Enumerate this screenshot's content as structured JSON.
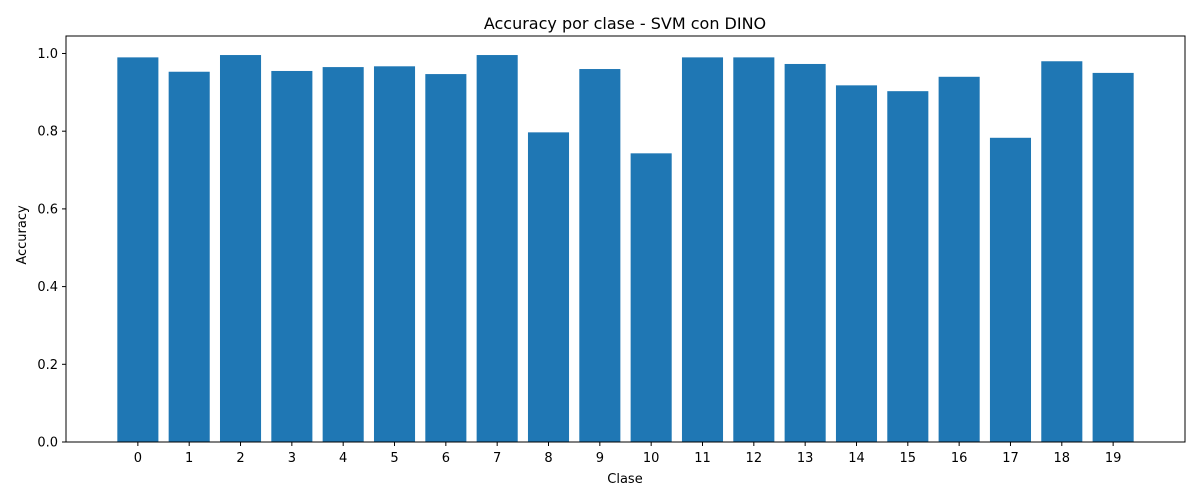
{
  "chart_data": {
    "type": "bar",
    "title": "Accuracy por clase - SVM con DINO",
    "xlabel": "Clase",
    "ylabel": "Accuracy",
    "categories": [
      "0",
      "1",
      "2",
      "3",
      "4",
      "5",
      "6",
      "7",
      "8",
      "9",
      "10",
      "11",
      "12",
      "13",
      "14",
      "15",
      "16",
      "17",
      "18",
      "19"
    ],
    "values": [
      0.99,
      0.953,
      0.996,
      0.955,
      0.965,
      0.967,
      0.947,
      0.996,
      0.797,
      0.96,
      0.743,
      0.99,
      0.99,
      0.973,
      0.918,
      0.903,
      0.94,
      0.783,
      0.98,
      0.95
    ],
    "ylim": [
      0,
      1.045
    ],
    "yticks": [
      "0.0",
      "0.2",
      "0.4",
      "0.6",
      "0.8",
      "1.0"
    ],
    "grid": false,
    "bar_color": "#1f77b4"
  }
}
